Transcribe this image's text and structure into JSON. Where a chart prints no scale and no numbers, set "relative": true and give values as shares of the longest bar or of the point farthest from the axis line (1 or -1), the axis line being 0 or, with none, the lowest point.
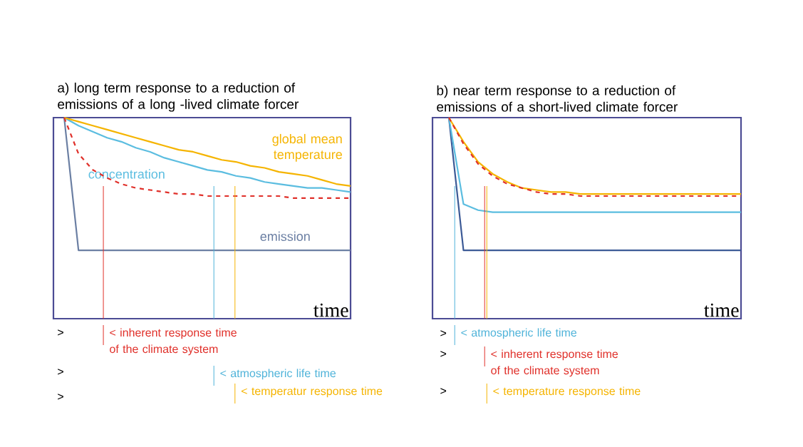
{
  "chart_data": [
    {
      "type": "line",
      "relative": true,
      "title": "a) long term response to a reduction of emissions of a long -lived climate forcer",
      "xlabel": "time",
      "categories": [
        null,
        null,
        null,
        null,
        null,
        null,
        null,
        null,
        null,
        null,
        null,
        null,
        null,
        null,
        null,
        null,
        null,
        null,
        null,
        null,
        null
      ],
      "series": [
        {
          "name": "emission",
          "color": "#6b7fa3",
          "values": [
            1,
            0.34,
            0.34,
            0.34,
            0.34,
            0.34,
            0.34,
            0.34,
            0.34,
            0.34,
            0.34,
            0.34,
            0.34,
            0.34,
            0.34,
            0.34,
            0.34,
            0.34,
            0.34,
            0.34,
            0.34
          ]
        },
        {
          "name": "concentration",
          "color": "#5bbde0",
          "values": [
            1,
            0.96,
            0.93,
            0.9,
            0.88,
            0.85,
            0.83,
            0.8,
            0.78,
            0.76,
            0.74,
            0.73,
            0.71,
            0.7,
            0.68,
            0.67,
            0.66,
            0.65,
            0.65,
            0.64,
            0.63
          ]
        },
        {
          "name": "global mean temperature",
          "color": "#f5b400",
          "values": [
            1,
            0.98,
            0.96,
            0.94,
            0.92,
            0.9,
            0.88,
            0.86,
            0.84,
            0.83,
            0.81,
            0.79,
            0.78,
            0.76,
            0.75,
            0.73,
            0.72,
            0.71,
            0.69,
            0.67,
            0.66
          ]
        },
        {
          "color": "#e0302a",
          "line_style": "dashed",
          "values": [
            1,
            0.82,
            0.74,
            0.7,
            0.67,
            0.65,
            0.64,
            0.63,
            0.62,
            0.62,
            0.61,
            0.61,
            0.61,
            0.61,
            0.61,
            0.61,
            0.6,
            0.6,
            0.6,
            0.6,
            0.6
          ]
        }
      ],
      "annotations": [
        "< inherent response time of the climate system",
        "< atmospheric  life time",
        "< temperatur response time",
        ">",
        ">",
        ">"
      ]
    },
    {
      "type": "line",
      "relative": true,
      "title": "b) near term response to a reduction of emissions of  a short-lived climate forcer",
      "xlabel": "time",
      "categories": [
        null,
        null,
        null,
        null,
        null,
        null,
        null,
        null,
        null,
        null,
        null,
        null,
        null,
        null,
        null,
        null,
        null,
        null,
        null,
        null,
        null
      ],
      "series": [
        {
          "color": "#3c5a96",
          "values": [
            1,
            0.34,
            0.34,
            0.34,
            0.34,
            0.34,
            0.34,
            0.34,
            0.34,
            0.34,
            0.34,
            0.34,
            0.34,
            0.34,
            0.34,
            0.34,
            0.34,
            0.34,
            0.34,
            0.34,
            0.34
          ]
        },
        {
          "color": "#5bbde0",
          "values": [
            1,
            0.57,
            0.54,
            0.53,
            0.53,
            0.53,
            0.53,
            0.53,
            0.53,
            0.53,
            0.53,
            0.53,
            0.53,
            0.53,
            0.53,
            0.53,
            0.53,
            0.53,
            0.53,
            0.53,
            0.53
          ]
        },
        {
          "color": "#f5b400",
          "values": [
            1,
            0.88,
            0.78,
            0.72,
            0.68,
            0.65,
            0.64,
            0.63,
            0.63,
            0.62,
            0.62,
            0.62,
            0.62,
            0.62,
            0.62,
            0.62,
            0.62,
            0.62,
            0.62,
            0.62,
            0.62
          ]
        },
        {
          "color": "#e0302a",
          "line_style": "dashed",
          "values": [
            1,
            0.87,
            0.77,
            0.71,
            0.67,
            0.65,
            0.63,
            0.62,
            0.62,
            0.61,
            0.61,
            0.61,
            0.61,
            0.61,
            0.61,
            0.61,
            0.61,
            0.61,
            0.61,
            0.61,
            0.61
          ]
        }
      ],
      "annotations": [
        "< atmospheric life time",
        "< inherent response time of the climate system",
        "< temperature  response time",
        ">",
        ">",
        ">"
      ]
    }
  ]
}
